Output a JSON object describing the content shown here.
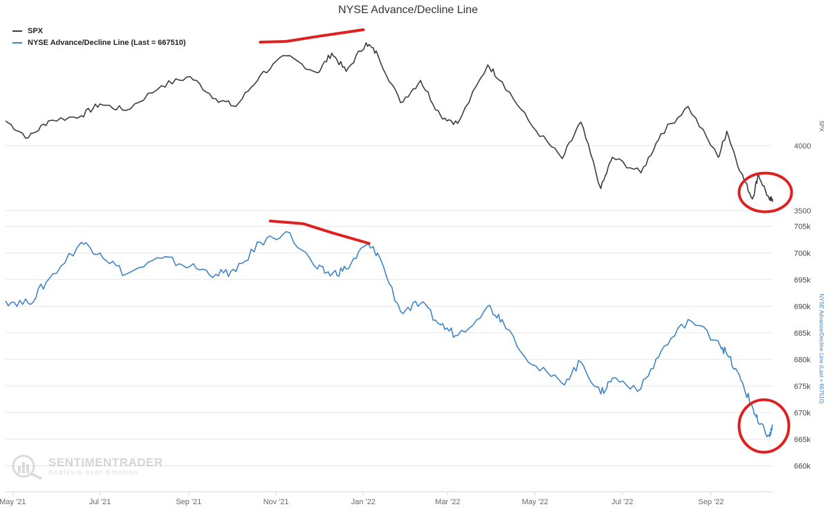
{
  "chart_data": {
    "type": "line",
    "title": "NYSE Advance/Decline Line",
    "colors": {
      "spx": "#3a3a3a",
      "adline": "#3d84c6",
      "annotation": "#e02020",
      "grid": "#e6e6e6"
    },
    "x_ticks": [
      "May '21",
      "Jul '21",
      "Sep '21",
      "Nov '21",
      "Jan '22",
      "Mar '22",
      "May '22",
      "Jul '22",
      "Sep '22"
    ],
    "x_tick_dates": [
      "2021-05-01",
      "2021-07-01",
      "2021-09-01",
      "2021-11-01",
      "2022-01-01",
      "2022-03-01",
      "2022-05-01",
      "2022-07-01",
      "2022-09-01"
    ],
    "xlim": [
      "2021-04-26",
      "2022-10-14"
    ],
    "panels": [
      {
        "series_name": "SPX",
        "ylabel": "SPX",
        "yticks": [
          "4000",
          "3500"
        ],
        "ytick_values": [
          4000,
          3500
        ],
        "ylim": [
          3500,
          4800
        ],
        "x": [
          "2021-04-26",
          "2021-05-12",
          "2021-05-26",
          "2021-06-18",
          "2021-07-01",
          "2021-07-19",
          "2021-08-13",
          "2021-09-02",
          "2021-09-20",
          "2021-10-04",
          "2021-10-21",
          "2021-11-08",
          "2021-11-30",
          "2021-12-10",
          "2021-12-20",
          "2022-01-03",
          "2022-01-11",
          "2022-01-27",
          "2022-02-10",
          "2022-02-24",
          "2022-03-08",
          "2022-03-29",
          "2022-04-08",
          "2022-04-29",
          "2022-05-20",
          "2022-06-02",
          "2022-06-16",
          "2022-06-24",
          "2022-07-14",
          "2022-07-28",
          "2022-08-16",
          "2022-09-06",
          "2022-09-12",
          "2022-09-22",
          "2022-09-30",
          "2022-10-04",
          "2022-10-12",
          "2022-10-14"
        ],
        "values": [
          4190,
          4060,
          4190,
          4230,
          4320,
          4270,
          4460,
          4530,
          4360,
          4300,
          4540,
          4690,
          4560,
          4710,
          4570,
          4790,
          4700,
          4330,
          4500,
          4230,
          4170,
          4620,
          4490,
          4150,
          3900,
          4180,
          3670,
          3910,
          3790,
          4090,
          4300,
          3910,
          4110,
          3790,
          3590,
          3780,
          3580,
          3590
        ]
      },
      {
        "series_name": "NYSE Advance/Decline Line (Last = 667510)",
        "ylabel": "NYSE Advance/Decline Line (Last = 667510)",
        "yticks": [
          "705k",
          "700k",
          "695k",
          "690k",
          "685k",
          "680k",
          "675k",
          "670k",
          "665k",
          "660k"
        ],
        "ytick_values": [
          705000,
          700000,
          695000,
          690000,
          685000,
          680000,
          675000,
          670000,
          665000,
          660000
        ],
        "ylim": [
          658000,
          706000
        ],
        "x": [
          "2021-04-26",
          "2021-05-12",
          "2021-05-26",
          "2021-06-18",
          "2021-07-01",
          "2021-07-19",
          "2021-08-13",
          "2021-09-02",
          "2021-09-20",
          "2021-10-04",
          "2021-10-21",
          "2021-11-08",
          "2021-11-30",
          "2021-12-10",
          "2021-12-20",
          "2022-01-03",
          "2022-01-11",
          "2022-01-27",
          "2022-02-10",
          "2022-02-24",
          "2022-03-08",
          "2022-03-29",
          "2022-04-08",
          "2022-04-29",
          "2022-05-20",
          "2022-06-02",
          "2022-06-16",
          "2022-06-24",
          "2022-07-14",
          "2022-07-28",
          "2022-08-16",
          "2022-09-06",
          "2022-09-12",
          "2022-09-22",
          "2022-09-30",
          "2022-10-04",
          "2022-10-12",
          "2022-10-14"
        ],
        "values": [
          691000,
          690500,
          695000,
          702000,
          700000,
          696000,
          699000,
          697500,
          696000,
          696500,
          702000,
          704000,
          697000,
          696000,
          697000,
          701500,
          700000,
          689000,
          690500,
          686500,
          684500,
          690000,
          687500,
          679000,
          675500,
          679500,
          673500,
          676500,
          674500,
          681500,
          687500,
          683500,
          681000,
          676000,
          671000,
          668000,
          665500,
          667510
        ]
      }
    ],
    "annotations": [
      "red line above SPX near Dec '21 (rising)",
      "red line above A/D line near Dec '21 (falling)",
      "red circle around SPX Oct '22",
      "red circle around A/D line Oct '22"
    ],
    "legend": {
      "position": "top-left",
      "items": [
        "SPX",
        "NYSE Advance/Decline Line (Last = 667510)"
      ]
    },
    "grid": true
  },
  "watermark": {
    "brand": "SENTIMENTRADER",
    "tagline": "Analysis over Emotion"
  }
}
